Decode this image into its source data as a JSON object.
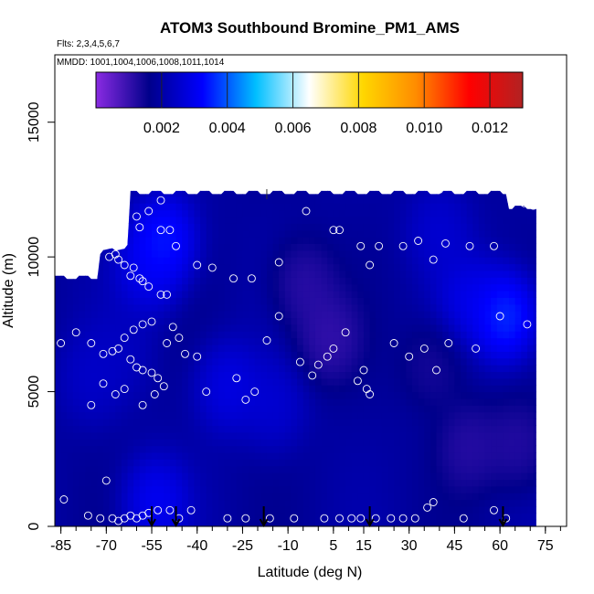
{
  "chart_data": {
    "type": "heatmap",
    "title": "ATOM3 Southbound Bromine_PM1_AMS",
    "flights_label": "Flts: 2,3,4,5,6,7",
    "dates_label": "MMDD: 1001,1004,1006,1008,1011,1014",
    "xlabel": "Latitude (deg N)",
    "ylabel": "Altitude (m)",
    "xlim": [
      -87,
      82
    ],
    "ylim": [
      0,
      17500
    ],
    "x_ticks": [
      -85,
      -70,
      -55,
      -40,
      -25,
      -10,
      5,
      15,
      30,
      45,
      60,
      75
    ],
    "x_tick_labels": [
      "-85",
      "-70",
      "-55",
      "-40",
      "-25",
      "-10",
      "5",
      "15",
      "30",
      "45",
      "60",
      "75"
    ],
    "y_ticks": [
      0,
      5000,
      10000,
      15000
    ],
    "y_tick_labels": [
      "0",
      "5000",
      "10000",
      "15000"
    ],
    "colorbar": {
      "range": [
        0,
        0.013
      ],
      "ticks": [
        0.002,
        0.004,
        0.006,
        0.008,
        0.01,
        0.012
      ],
      "tick_labels": [
        "0.002",
        "0.004",
        "0.006",
        "0.008",
        "0.010",
        "0.012"
      ],
      "colors": [
        "#8a2be2",
        "#00008b",
        "#0000ff",
        "#00bfff",
        "#ffffff",
        "#ffd700",
        "#ff8c00",
        "#ff0000",
        "#b22222"
      ]
    },
    "field_extent": {
      "lat": [
        -87,
        72
      ],
      "alt": [
        0,
        12500
      ]
    },
    "field_blobs": [
      {
        "lat": -51,
        "alt": 10600,
        "value": 0.0042
      },
      {
        "lat": -56,
        "alt": 9500,
        "value": 0.0034
      },
      {
        "lat": -30,
        "alt": 5200,
        "value": 0.0033
      },
      {
        "lat": -54,
        "alt": 900,
        "value": 0.0036
      },
      {
        "lat": -15,
        "alt": 4500,
        "value": 0.0029
      },
      {
        "lat": 62,
        "alt": 7800,
        "value": 0.0045
      },
      {
        "lat": 50,
        "alt": 8400,
        "value": 0.0033
      },
      {
        "lat": -75,
        "alt": 5500,
        "value": 0.0027
      },
      {
        "lat": 40,
        "alt": 11000,
        "value": 0.0029
      },
      {
        "lat": -5,
        "alt": 9000,
        "value": 0.0008
      },
      {
        "lat": 3,
        "alt": 7000,
        "value": 0.0007
      },
      {
        "lat": 50,
        "alt": 3000,
        "value": 0.0009
      },
      {
        "lat": 66,
        "alt": 3000,
        "value": 0.0009
      },
      {
        "lat": 38,
        "alt": 6000,
        "value": 0.0011
      },
      {
        "lat": -65,
        "alt": 6500,
        "value": 0.0025
      }
    ],
    "observations": [
      [
        -84,
        9900
      ],
      [
        -80,
        9900
      ],
      [
        -75,
        9900
      ],
      [
        -69,
        10000
      ],
      [
        -67,
        10100
      ],
      [
        -66,
        9900
      ],
      [
        -64,
        9700
      ],
      [
        -62,
        9300
      ],
      [
        -61,
        9600
      ],
      [
        -59,
        9200
      ],
      [
        -58,
        9100
      ],
      [
        -56,
        8900
      ],
      [
        -52,
        8600
      ],
      [
        -50,
        8600
      ],
      [
        -48,
        7400
      ],
      [
        -46,
        7000
      ],
      [
        -55,
        7600
      ],
      [
        -58,
        7500
      ],
      [
        -61,
        7300
      ],
      [
        -64,
        7000
      ],
      [
        -66,
        6600
      ],
      [
        -68,
        6500
      ],
      [
        -71,
        6400
      ],
      [
        -75,
        6800
      ],
      [
        -80,
        7200
      ],
      [
        -62,
        6200
      ],
      [
        -60,
        5900
      ],
      [
        -58,
        5800
      ],
      [
        -55,
        5700
      ],
      [
        -53,
        5500
      ],
      [
        -51,
        5200
      ],
      [
        -64,
        5100
      ],
      [
        -67,
        4900
      ],
      [
        -71,
        5300
      ],
      [
        -75,
        4500
      ],
      [
        -58,
        4500
      ],
      [
        -54,
        4900
      ],
      [
        -50,
        6800
      ],
      [
        -44,
        6400
      ],
      [
        -40,
        6300
      ],
      [
        -37,
        5000
      ],
      [
        -27,
        5500
      ],
      [
        -24,
        4700
      ],
      [
        -21,
        5000
      ],
      [
        -17,
        6900
      ],
      [
        -13,
        7800
      ],
      [
        -6,
        6100
      ],
      [
        -2,
        5600
      ],
      [
        0,
        6000
      ],
      [
        3,
        6300
      ],
      [
        5,
        6600
      ],
      [
        9,
        7200
      ],
      [
        13,
        5400
      ],
      [
        15,
        5800
      ],
      [
        16,
        5100
      ],
      [
        17,
        4900
      ],
      [
        25,
        6800
      ],
      [
        30,
        6300
      ],
      [
        35,
        6600
      ],
      [
        39,
        5800
      ],
      [
        43,
        6800
      ],
      [
        52,
        6600
      ],
      [
        60,
        7800
      ],
      [
        69,
        7500
      ],
      [
        -52,
        12100
      ],
      [
        -56,
        11700
      ],
      [
        -60,
        11500
      ],
      [
        -59,
        11100
      ],
      [
        -52,
        11000
      ],
      [
        -49,
        11000
      ],
      [
        -47,
        10400
      ],
      [
        -40,
        9700
      ],
      [
        -35,
        9600
      ],
      [
        -28,
        9200
      ],
      [
        -22,
        9200
      ],
      [
        -13,
        9800
      ],
      [
        -4,
        11700
      ],
      [
        5,
        11000
      ],
      [
        7,
        11000
      ],
      [
        14,
        10400
      ],
      [
        17,
        9700
      ],
      [
        20,
        10400
      ],
      [
        28,
        10400
      ],
      [
        33,
        10600
      ],
      [
        38,
        9900
      ],
      [
        42,
        10500
      ],
      [
        50,
        10400
      ],
      [
        58,
        10400
      ],
      [
        68,
        12000
      ],
      [
        71,
        11900
      ],
      [
        75,
        12000
      ],
      [
        40,
        12500
      ],
      [
        -30,
        12800
      ],
      [
        -85,
        6800
      ],
      [
        -70,
        1700
      ],
      [
        -84,
        1000
      ],
      [
        -64,
        300
      ],
      [
        -62,
        400
      ],
      [
        -60,
        300
      ],
      [
        -58,
        400
      ],
      [
        -56,
        500
      ],
      [
        -53,
        600
      ],
      [
        -49,
        600
      ],
      [
        -46,
        300
      ],
      [
        -42,
        600
      ],
      [
        -30,
        300
      ],
      [
        -24,
        300
      ],
      [
        -16,
        300
      ],
      [
        -8,
        300
      ],
      [
        2,
        300
      ],
      [
        7,
        300
      ],
      [
        11,
        300
      ],
      [
        14,
        300
      ],
      [
        19,
        300
      ],
      [
        24,
        300
      ],
      [
        28,
        300
      ],
      [
        32,
        300
      ],
      [
        36,
        700
      ],
      [
        38,
        900
      ],
      [
        48,
        300
      ],
      [
        58,
        600
      ],
      [
        62,
        300
      ],
      [
        74,
        1400
      ],
      [
        -72,
        300
      ],
      [
        -68,
        300
      ],
      [
        -66,
        200
      ],
      [
        -76,
        400
      ]
    ],
    "flight_markers_lat": [
      -55,
      -47,
      -18,
      17,
      61
    ],
    "top_tick_lat": -17
  }
}
